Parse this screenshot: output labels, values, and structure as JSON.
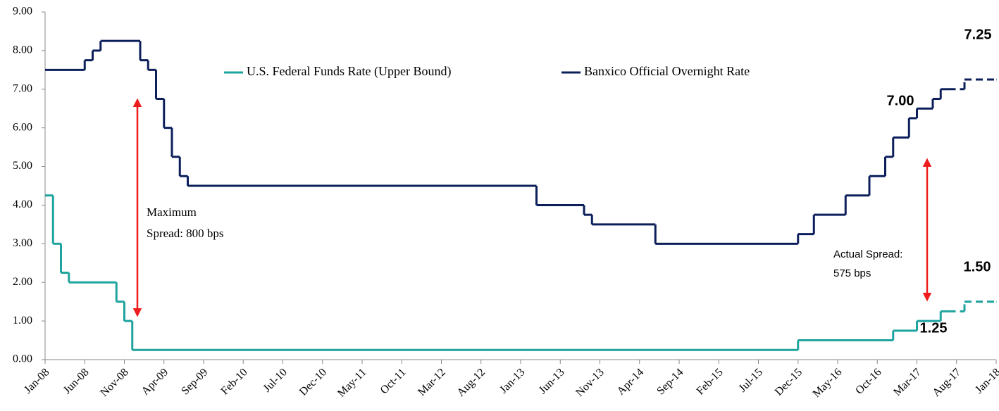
{
  "chart_data": {
    "type": "step",
    "xlim": [
      "Jan-08",
      "Jan-18"
    ],
    "xticks": [
      "Jan-08",
      "Jun-08",
      "Nov-08",
      "Apr-09",
      "Sep-09",
      "Feb-10",
      "Jul-10",
      "Dec-10",
      "May-11",
      "Oct-11",
      "Mar-12",
      "Aug-12",
      "Jan-13",
      "Jun-13",
      "Nov-13",
      "Apr-14",
      "Sep-14",
      "Feb-15",
      "Jul-15",
      "Dec-15",
      "May-16",
      "Oct-16",
      "Mar-17",
      "Aug-17",
      "Jan-18"
    ],
    "ylim": [
      0,
      9
    ],
    "yticks": [
      {
        "value": 0,
        "label": "0.00"
      },
      {
        "value": 1,
        "label": "1.00"
      },
      {
        "value": 2,
        "label": "2.00"
      },
      {
        "value": 3,
        "label": "3.00"
      },
      {
        "value": 4,
        "label": "4.00"
      },
      {
        "value": 5,
        "label": "5.00"
      },
      {
        "value": 6,
        "label": "6.00"
      },
      {
        "value": 7,
        "label": "7.00"
      },
      {
        "value": 8,
        "label": "8.00"
      },
      {
        "value": 9,
        "label": "9.00"
      }
    ],
    "legend": "top",
    "series": [
      {
        "name": "U.S. Federal Funds Rate (Upper Bound)",
        "color": "#1fa39e",
        "x": [
          "Jan-08",
          "Feb-08",
          "Mar-08",
          "Apr-08",
          "Oct-08",
          "Nov-08",
          "Dec-08",
          "Dec-15",
          "Dec-16",
          "Mar-17",
          "Jun-17",
          "Jul-17",
          "Sep-17",
          "Jan-18"
        ],
        "values": [
          4.25,
          3.0,
          2.25,
          2.0,
          1.5,
          1.0,
          0.25,
          0.5,
          0.75,
          1.0,
          1.25,
          1.25,
          null,
          null
        ],
        "dashed_values": [
          null,
          null,
          null,
          null,
          null,
          null,
          null,
          null,
          null,
          null,
          null,
          1.25,
          1.5,
          1.5
        ]
      },
      {
        "name": "Banxico Official Overnight Rate",
        "color": "#0c1f5b",
        "x": [
          "Jan-08",
          "Jun-08",
          "Jul-08",
          "Aug-08",
          "Jan-09",
          "Feb-09",
          "Mar-09",
          "Apr-09",
          "May-09",
          "Jun-09",
          "Jul-09",
          "Mar-13",
          "Sep-13",
          "Oct-13",
          "Jun-14",
          "Dec-15",
          "Feb-16",
          "Jun-16",
          "Sep-16",
          "Nov-16",
          "Dec-16",
          "Feb-17",
          "Mar-17",
          "May-17",
          "Jun-17",
          "Jul-17",
          "Sep-17",
          "Jan-18"
        ],
        "values": [
          7.5,
          7.75,
          8.0,
          8.25,
          7.75,
          7.5,
          6.75,
          6.0,
          5.25,
          4.75,
          4.5,
          4.0,
          3.75,
          3.5,
          3.0,
          3.25,
          3.75,
          4.25,
          4.75,
          5.25,
          5.75,
          6.25,
          6.5,
          6.75,
          7.0,
          7.0,
          null,
          null
        ],
        "dashed_values": [
          null,
          null,
          null,
          null,
          null,
          null,
          null,
          null,
          null,
          null,
          null,
          null,
          null,
          null,
          null,
          null,
          null,
          null,
          null,
          null,
          null,
          null,
          null,
          null,
          null,
          7.0,
          7.25,
          7.25
        ]
      }
    ],
    "annotations": [
      {
        "text": "7.25",
        "series": 1
      },
      {
        "text": "7.00",
        "series": 1
      },
      {
        "text": "1.50",
        "series": 0
      },
      {
        "text": "1.25",
        "series": 0
      },
      {
        "text": [
          "Maximum",
          "Spread: 800 bps"
        ]
      },
      {
        "text": [
          "Actual Spread:",
          "575 bps"
        ]
      }
    ]
  }
}
